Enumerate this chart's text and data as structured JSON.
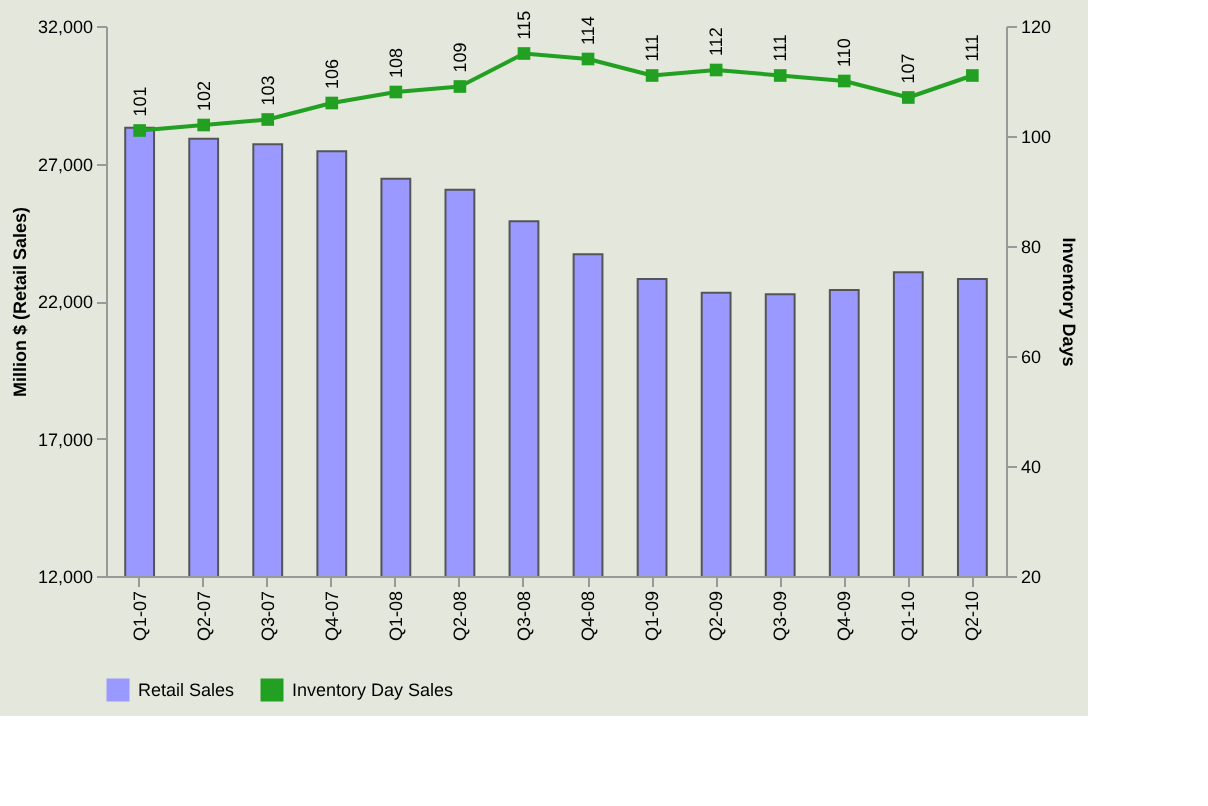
{
  "chart_data": {
    "type": "bar",
    "categories": [
      "Q1-07",
      "Q2-07",
      "Q3-07",
      "Q4-07",
      "Q1-08",
      "Q2-08",
      "Q3-08",
      "Q4-08",
      "Q1-09",
      "Q2-09",
      "Q3-09",
      "Q4-09",
      "Q1-10",
      "Q2-10"
    ],
    "series": [
      {
        "name": "Retail Sales",
        "color": "#9999ff",
        "values": [
          28300,
          27900,
          27700,
          27450,
          26450,
          26050,
          24900,
          23700,
          22800,
          22300,
          22250,
          22400,
          23050,
          22800
        ]
      },
      {
        "name": "Inventory Day Sales",
        "type": "line",
        "axis": "y2",
        "color": "#22a022",
        "marker": "square",
        "data_labels": true,
        "values": [
          101,
          102,
          103,
          106,
          108,
          109,
          115,
          114,
          111,
          112,
          111,
          110,
          107,
          111
        ]
      }
    ],
    "ylabel": "Million $ (Retail Sales)",
    "y2label": "Inventory Days",
    "ylim": [
      12000,
      32000
    ],
    "yticks": [
      {
        "value": 12000,
        "label": "12,000"
      },
      {
        "value": 17000,
        "label": "17,000"
      },
      {
        "value": 22000,
        "label": "22,000"
      },
      {
        "value": 27000,
        "label": "27,000"
      },
      {
        "value": 32000,
        "label": "32,000"
      }
    ],
    "y2lim": [
      20,
      120
    ],
    "y2ticks": [
      20,
      40,
      60,
      80,
      100,
      120
    ],
    "grid": false,
    "legend": "bottom"
  }
}
